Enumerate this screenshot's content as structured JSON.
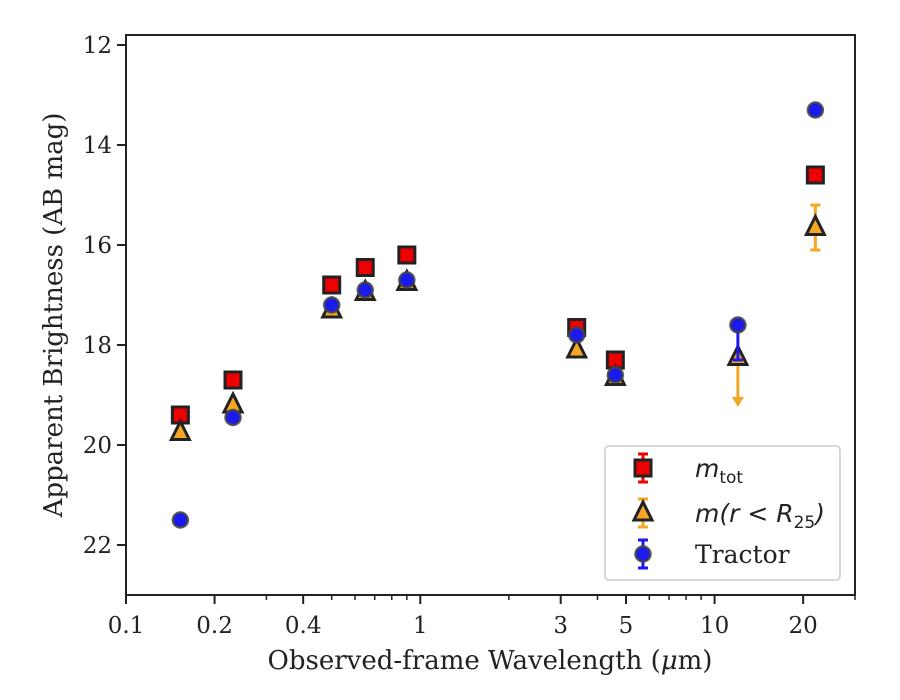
{
  "chart_data": {
    "type": "scatter",
    "xlabel_prefix": "Observed-frame Wavelength (",
    "xlabel_mu": "μ",
    "xlabel_suffix": "m)",
    "ylabel": "Apparent Brightness (AB mag)",
    "xscale": "log",
    "xlim": [
      0.1,
      30
    ],
    "ylim": [
      23,
      11.8
    ],
    "y_inverted": true,
    "x_ticks": [
      0.1,
      0.2,
      0.4,
      1,
      3,
      5,
      10,
      20
    ],
    "x_tick_labels": [
      "0.1",
      "0.2",
      "0.4",
      "1",
      "3",
      "5",
      "10",
      "20"
    ],
    "y_ticks": [
      12,
      14,
      16,
      18,
      20,
      22
    ],
    "y_tick_labels": [
      "12",
      "14",
      "16",
      "18",
      "20",
      "22"
    ],
    "grid": false,
    "legend_position": "lower-right",
    "series": [
      {
        "key": "mtot",
        "marker": "square",
        "face_color": "#ee0000",
        "edge_color": "#222222",
        "err_color": "#ee0000",
        "points": [
          {
            "x": 0.153,
            "y": 19.4,
            "err": 0.05
          },
          {
            "x": 0.231,
            "y": 18.7,
            "err": 0.05
          },
          {
            "x": 0.5,
            "y": 16.8,
            "err": 0.05
          },
          {
            "x": 0.65,
            "y": 16.45,
            "err": 0.05
          },
          {
            "x": 0.9,
            "y": 16.2,
            "err": 0.05
          },
          {
            "x": 3.4,
            "y": 17.65,
            "err": 0.05
          },
          {
            "x": 4.6,
            "y": 18.3,
            "err": 0.05
          },
          {
            "x": 22,
            "y": 14.6,
            "err": 0.05
          }
        ]
      },
      {
        "key": "mr25",
        "marker": "triangle",
        "face_color": "#f5a623",
        "edge_color": "#222222",
        "err_color": "#f5a623",
        "points": [
          {
            "x": 0.153,
            "y": 19.75,
            "err": 0.05
          },
          {
            "x": 0.231,
            "y": 19.2,
            "err": 0.05
          },
          {
            "x": 0.5,
            "y": 17.3,
            "err": 0.05
          },
          {
            "x": 0.65,
            "y": 16.95,
            "err": 0.05
          },
          {
            "x": 0.9,
            "y": 16.75,
            "err": 0.05
          },
          {
            "x": 3.4,
            "y": 18.1,
            "err": 0.05
          },
          {
            "x": 4.6,
            "y": 18.65,
            "err": 0.05
          },
          {
            "x": 12,
            "y": 18.25,
            "upper_limit": true,
            "limit_to": 19.2
          },
          {
            "x": 22,
            "y": 15.65,
            "err": 0.45
          }
        ]
      },
      {
        "key": "tractor",
        "name": "Tractor",
        "marker": "circle",
        "face_color": "#1a1aee",
        "edge_color": "#444444",
        "err_color": "#1a1aee",
        "points": [
          {
            "x": 0.153,
            "y": 21.5,
            "err": 0.05
          },
          {
            "x": 0.231,
            "y": 19.45,
            "err": 0.05
          },
          {
            "x": 0.5,
            "y": 17.2,
            "err": 0.05
          },
          {
            "x": 0.65,
            "y": 16.9,
            "err": 0.05
          },
          {
            "x": 0.9,
            "y": 16.7,
            "err": 0.05
          },
          {
            "x": 3.4,
            "y": 17.8,
            "err": 0.05
          },
          {
            "x": 4.6,
            "y": 18.6,
            "err": 0.05
          },
          {
            "x": 12,
            "y": 17.6,
            "err_low": 0.05,
            "err_high": 0.7
          },
          {
            "x": 22,
            "y": 13.3,
            "err": 0.05
          }
        ]
      }
    ],
    "legend": {
      "mtot": {
        "base": "m",
        "sub": "tot"
      },
      "mr25": {
        "prefix": "m(r < R",
        "sub": "25",
        "suffix": ")"
      },
      "tractor": {
        "text": "Tractor"
      }
    }
  }
}
